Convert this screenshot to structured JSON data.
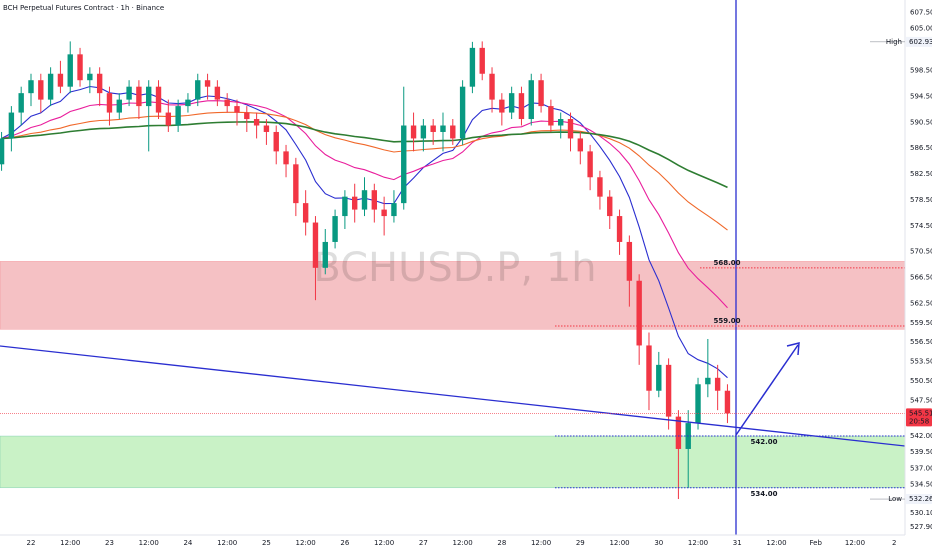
{
  "chart_data": {
    "type": "candlestick",
    "title": "BCH Perpetual Futures Contract · 1h · Binance",
    "watermark": "BCHUSD.P, 1h",
    "x": [
      -9,
      -6,
      -3,
      0,
      3,
      6,
      9,
      12,
      15,
      18,
      21,
      24,
      27,
      30,
      33,
      36,
      39,
      42,
      45,
      48,
      51,
      54,
      57,
      60,
      63,
      66,
      69,
      72,
      75,
      78,
      81,
      84,
      87,
      90,
      93,
      96,
      99,
      102,
      105,
      108,
      111,
      114,
      117,
      120,
      123,
      126,
      129,
      132,
      135,
      138,
      141,
      144,
      147,
      150,
      153,
      156,
      159,
      162,
      165,
      168,
      171,
      174,
      177,
      180,
      183,
      186,
      189,
      192,
      195,
      198,
      201,
      204,
      207,
      210,
      213
    ],
    "open": [
      584,
      588,
      592,
      595,
      597,
      594,
      598,
      596,
      601,
      597,
      598,
      595,
      592,
      594,
      596,
      593,
      596,
      592,
      590,
      593,
      594,
      597,
      596,
      594,
      593,
      592,
      591,
      590,
      589,
      586,
      584,
      578,
      575,
      568,
      572,
      576,
      579,
      577,
      580,
      577,
      576,
      578,
      590,
      588,
      590,
      589,
      590,
      588,
      596,
      602,
      598,
      594,
      592,
      595,
      591,
      597,
      593,
      590,
      591,
      588,
      586,
      582,
      579,
      576,
      572,
      566,
      556,
      549,
      553,
      545,
      540,
      544,
      550,
      551,
      549
    ],
    "high": [
      589,
      593,
      596,
      598,
      598,
      599,
      600,
      603,
      602,
      599,
      599,
      596,
      595,
      597,
      597,
      597,
      597,
      594,
      594,
      595,
      598,
      598,
      597,
      595,
      594,
      593,
      592,
      591,
      590,
      587,
      585,
      580,
      576,
      574,
      577,
      580,
      581,
      582,
      581,
      579,
      580,
      596,
      592,
      591,
      591,
      592,
      591,
      597,
      602.93,
      603,
      599,
      595,
      596,
      596,
      598,
      598,
      594,
      592,
      592,
      589,
      587,
      583,
      580,
      577,
      573,
      567,
      558,
      555,
      554,
      546,
      546,
      551,
      557,
      553,
      550
    ],
    "low": [
      583,
      586,
      590,
      593,
      592,
      593,
      595,
      595,
      596,
      595,
      593,
      590,
      591,
      593,
      591,
      586,
      591,
      589,
      589,
      592,
      593,
      594,
      593,
      592,
      590,
      589,
      588,
      587,
      584,
      582,
      576,
      573,
      563,
      567,
      571,
      574,
      575,
      576,
      575,
      573,
      575,
      577,
      586,
      586,
      587,
      586,
      587,
      587,
      595,
      597,
      592,
      590,
      591,
      590,
      590,
      592,
      589,
      588,
      586,
      584,
      580,
      577,
      574,
      570,
      562,
      553,
      546,
      548,
      543,
      532.26,
      534,
      543,
      548,
      546,
      544
    ],
    "close": [
      588,
      592,
      595,
      597,
      594,
      598,
      596,
      601,
      597,
      598,
      595,
      592,
      594,
      596,
      593,
      596,
      592,
      590,
      593,
      594,
      597,
      596,
      594,
      593,
      592,
      591,
      590,
      589,
      586,
      584,
      578,
      575,
      568,
      572,
      576,
      579,
      577,
      580,
      577,
      576,
      578,
      590,
      588,
      590,
      589,
      590,
      588,
      596,
      602,
      598,
      594,
      592,
      595,
      591,
      597,
      593,
      590,
      591,
      588,
      586,
      582,
      579,
      576,
      572,
      566,
      556,
      549,
      553,
      545,
      540,
      544,
      550,
      551,
      549,
      545.51
    ],
    "up_color": "#089981",
    "down_color": "#f23645",
    "xlim": [
      -9.48,
      267.3
    ],
    "xticks": [
      {
        "value": 0,
        "label": "22"
      },
      {
        "value": 12,
        "label": "12:00"
      },
      {
        "value": 24,
        "label": "23"
      },
      {
        "value": 36,
        "label": "12:00"
      },
      {
        "value": 48,
        "label": "24"
      },
      {
        "value": 60,
        "label": "12:00"
      },
      {
        "value": 72,
        "label": "25"
      },
      {
        "value": 84,
        "label": "12:00"
      },
      {
        "value": 96,
        "label": "26"
      },
      {
        "value": 108,
        "label": "12:00"
      },
      {
        "value": 120,
        "label": "27"
      },
      {
        "value": 132,
        "label": "12:00"
      },
      {
        "value": 144,
        "label": "28"
      },
      {
        "value": 156,
        "label": "12:00"
      },
      {
        "value": 168,
        "label": "29"
      },
      {
        "value": 180,
        "label": "12:00"
      },
      {
        "value": 192,
        "label": "30"
      },
      {
        "value": 204,
        "label": "12:00"
      },
      {
        "value": 216,
        "label": "31"
      },
      {
        "value": 228,
        "label": "12:00"
      },
      {
        "value": 240,
        "label": "Feb"
      },
      {
        "value": 252,
        "label": "12:00"
      },
      {
        "value": 264,
        "label": "2"
      }
    ],
    "ylim": [
      526.7,
      609.4
    ],
    "yticks": [
      {
        "value": 607.5,
        "label": "607.50"
      },
      {
        "value": 605,
        "label": "605.00"
      },
      {
        "value": 598.5,
        "label": "598.50"
      },
      {
        "value": 594.5,
        "label": "594.50"
      },
      {
        "value": 590.5,
        "label": "590.50"
      },
      {
        "value": 586.5,
        "label": "586.50"
      },
      {
        "value": 582.5,
        "label": "582.50"
      },
      {
        "value": 578.5,
        "label": "578.50"
      },
      {
        "value": 574.5,
        "label": "574.50"
      },
      {
        "value": 570.5,
        "label": "570.50"
      },
      {
        "value": 566.5,
        "label": "566.50"
      },
      {
        "value": 562.5,
        "label": "562.50"
      },
      {
        "value": 559.5,
        "label": "559.50"
      },
      {
        "value": 556.5,
        "label": "556.50"
      },
      {
        "value": 553.5,
        "label": "553.50"
      },
      {
        "value": 550.5,
        "label": "550.50"
      },
      {
        "value": 547.5,
        "label": "547.50"
      },
      {
        "value": 542,
        "label": "542.00"
      },
      {
        "value": 539.5,
        "label": "539.50"
      },
      {
        "value": 537,
        "label": "537.00"
      },
      {
        "value": 534.5,
        "label": "534.50"
      },
      {
        "value": 530.1,
        "label": "530.10"
      },
      {
        "value": 527.9,
        "label": "527.90"
      }
    ],
    "zones": [
      {
        "from": 558.5,
        "to": 569,
        "color": "#f5c1c4"
      },
      {
        "from": 534,
        "to": 542,
        "color": "#c9f2c6"
      }
    ],
    "levels": [
      {
        "value": 568,
        "label": "568.00",
        "color": "#f23645"
      },
      {
        "value": 559,
        "label": "559.00",
        "color": "#f23645"
      },
      {
        "value": 542,
        "label": "542.00",
        "color": "#2a2ed0"
      },
      {
        "value": 534,
        "label": "534.00",
        "color": "#2a2ed0"
      }
    ],
    "high_marker": {
      "label": "High",
      "value": 602.93,
      "value_label": "602.93"
    },
    "low_marker": {
      "label": "Low",
      "value": 532.26,
      "value_label": "532.26"
    },
    "last_price": {
      "value": 545.51,
      "value_label": "545.51",
      "countdown": "20:58"
    },
    "moving_averages": [
      {
        "period": 9,
        "color": "#2a2ed0"
      },
      {
        "period": 21,
        "color": "#e91e9c"
      },
      {
        "period": 50,
        "color": "#f0682a"
      },
      {
        "period": 100,
        "color": "#2e7d32"
      }
    ]
  }
}
